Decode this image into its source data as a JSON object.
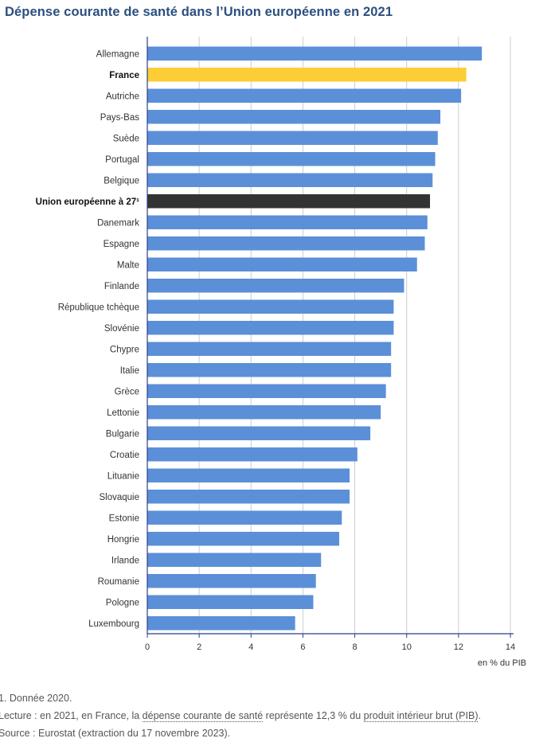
{
  "title": "Dépense courante de santé dans l’Union européenne en 2021",
  "chart_data": {
    "type": "bar",
    "orientation": "horizontal",
    "title": "Dépense courante de santé dans l’Union européenne en 2021",
    "xlabel": "en % du PIB",
    "xlim": [
      0,
      14
    ],
    "xticks": [
      "0",
      "2",
      "4",
      "6",
      "8",
      "10",
      "12",
      "14"
    ],
    "grid": true,
    "categories": [
      "Allemagne",
      "France",
      "Autriche",
      "Pays-Bas",
      "Suède",
      "Portugal",
      "Belgique",
      "Union européenne à 27¹",
      "Danemark",
      "Espagne",
      "Malte",
      "Finlande",
      "République tchèque",
      "Slovénie",
      "Chypre",
      "Italie",
      "Grèce",
      "Lettonie",
      "Bulgarie",
      "Croatie",
      "Lituanie",
      "Slovaquie",
      "Estonie",
      "Hongrie",
      "Irlande",
      "Roumanie",
      "Pologne",
      "Luxembourg"
    ],
    "values": [
      12.9,
      12.3,
      12.1,
      11.3,
      11.2,
      11.1,
      11.0,
      10.9,
      10.8,
      10.7,
      10.4,
      9.9,
      9.5,
      9.5,
      9.4,
      9.4,
      9.2,
      9.0,
      8.6,
      8.1,
      7.8,
      7.8,
      7.5,
      7.4,
      6.7,
      6.5,
      6.4,
      5.7
    ],
    "highlight": {
      "France": "#fccd34",
      "Union européenne à 27¹": "#333333"
    },
    "bold_categories": [
      "France",
      "Union européenne à 27¹"
    ],
    "colors": {
      "bar": "#5b8fd8",
      "grid": "#cccccc",
      "axis": "#2b3f8c"
    }
  },
  "notes": {
    "note1": "1. Donnée 2020.",
    "lecture_pre": "Lecture : en 2021, en France, la ",
    "lecture_link1": "dépense courante de santé",
    "lecture_mid": " représente 12,3 % du ",
    "lecture_link2": "produit intérieur brut (PIB)",
    "lecture_post": ".",
    "source": "Source : Eurostat (extraction du 17 novembre 2023)."
  }
}
